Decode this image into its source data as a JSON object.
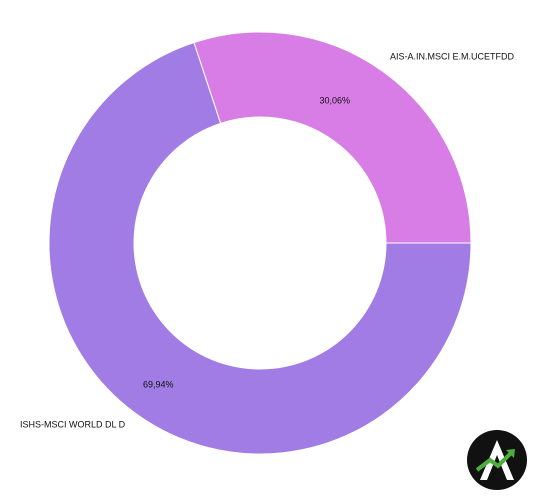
{
  "chart_data": {
    "type": "donut",
    "categories": [
      "ISHS-MSCI WORLD DL D",
      "AIS-A.IN.MSCI E.M.UCETFDD"
    ],
    "values": [
      69.94,
      30.06
    ],
    "value_labels": [
      "69,94%",
      "30,06%"
    ],
    "colors": [
      "#a07ce4",
      "#d87de5"
    ]
  }
}
